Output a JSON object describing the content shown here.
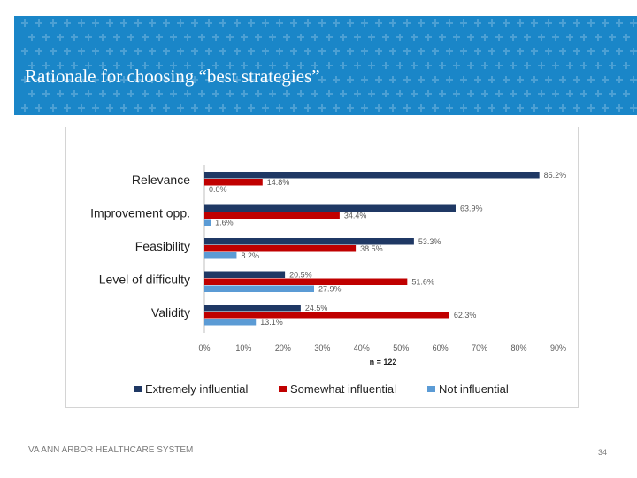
{
  "slide": {
    "title": "Rationale for choosing “best strategies”",
    "footer": "VA ANN ARBOR HEALTHCARE SYSTEM",
    "page_number": "34"
  },
  "colors": {
    "banner": "#1a86c8",
    "extremely": "#1f3864",
    "somewhat": "#c00000",
    "not": "#5b9bd5"
  },
  "chart_data": {
    "type": "bar",
    "orientation": "horizontal",
    "categories": [
      "Relevance",
      "Improvement opp.",
      "Feasibility",
      "Level of difficulty",
      "Validity"
    ],
    "series": [
      {
        "name": "Extremely influential",
        "values": [
          85.2,
          63.9,
          53.3,
          20.5,
          24.5
        ],
        "labels": [
          "85.2%",
          "63.9%",
          "53.3%",
          "20.5%",
          "24.5%"
        ]
      },
      {
        "name": "Somewhat influential",
        "values": [
          14.8,
          34.4,
          38.5,
          51.6,
          62.3
        ],
        "labels": [
          "14.8%",
          "34.4%",
          "38.5%",
          "51.6%",
          "62.3%"
        ]
      },
      {
        "name": "Not influential",
        "values": [
          0.0,
          1.6,
          8.2,
          27.9,
          13.1
        ],
        "labels": [
          "0.0%",
          "1.6%",
          "8.2%",
          "27.9%",
          "13.1%"
        ]
      }
    ],
    "xlim": [
      0,
      90
    ],
    "xticks": [
      "0%",
      "10%",
      "20%",
      "30%",
      "40%",
      "50%",
      "60%",
      "70%",
      "80%",
      "90%"
    ],
    "xlabel": "n = 122",
    "legend_position": "bottom",
    "grid": false
  }
}
